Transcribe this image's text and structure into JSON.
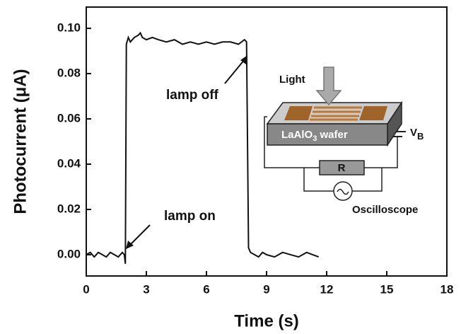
{
  "chart_data": {
    "type": "line",
    "x_label": "Time (s)",
    "y_label": "Photocurrent (μA)",
    "color": "#111111",
    "x": [
      0,
      0.2,
      0.4,
      0.6,
      0.8,
      1.0,
      1.2,
      1.4,
      1.6,
      1.8,
      1.9,
      1.95,
      2.0,
      2.1,
      2.2,
      2.4,
      2.6,
      2.7,
      2.8,
      3.0,
      3.3,
      3.6,
      4.0,
      4.4,
      4.8,
      5.2,
      5.6,
      6.0,
      6.4,
      6.8,
      7.2,
      7.6,
      7.9,
      8.0,
      8.1,
      8.2,
      8.4,
      8.6,
      8.8,
      9.0,
      9.4,
      9.8,
      10.2,
      10.6,
      11.0,
      11.3,
      11.6
    ],
    "values": [
      0.0,
      0.001,
      -0.001,
      0.001,
      0.0,
      -0.001,
      0.001,
      0.0,
      -0.001,
      0.001,
      0.0,
      -0.004,
      0.093,
      0.096,
      0.094,
      0.096,
      0.097,
      0.098,
      0.096,
      0.095,
      0.096,
      0.095,
      0.094,
      0.095,
      0.093,
      0.094,
      0.093,
      0.094,
      0.093,
      0.094,
      0.094,
      0.093,
      0.095,
      0.094,
      0.003,
      0.001,
      0.0,
      -0.001,
      0.001,
      0.0,
      -0.001,
      0.001,
      0.0,
      -0.001,
      0.001,
      0.0,
      -0.001
    ],
    "xlim": [
      0,
      18
    ],
    "xticks": [
      0,
      3,
      6,
      9,
      12,
      15,
      18
    ],
    "ylim": [
      -0.0094,
      0.1094
    ],
    "yticks": [
      {
        "value": 0,
        "label": "0.00"
      },
      {
        "value": 0.02,
        "label": "0.02"
      },
      {
        "value": 0.04,
        "label": "0.04"
      },
      {
        "value": 0.06,
        "label": "0.06"
      },
      {
        "value": 0.08,
        "label": "0.08"
      },
      {
        "value": 0.1,
        "label": "0.10"
      }
    ],
    "annotations": [
      "lamp on",
      "lamp off"
    ],
    "inset": {
      "light": "Light",
      "wafer": {
        "main": "LaAlO",
        "sub": "3",
        "rest": " wafer"
      },
      "voltage": {
        "main": "V",
        "sub": "B"
      },
      "resistor": "R",
      "scope": "Oscilloscope"
    }
  }
}
